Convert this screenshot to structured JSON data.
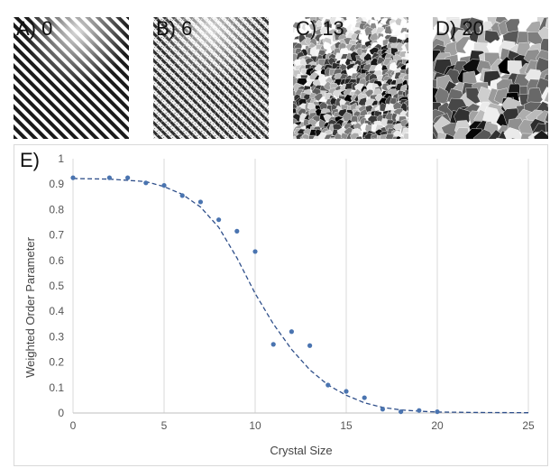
{
  "panels": [
    {
      "id": "a",
      "label": "A) 0"
    },
    {
      "id": "b",
      "label": "B) 6"
    },
    {
      "id": "c",
      "label": "C) 13"
    },
    {
      "id": "d",
      "label": "D) 20"
    }
  ],
  "chart_data": {
    "type": "scatter",
    "panel_label": "E)",
    "xlabel": "Crystal Size",
    "ylabel": "Weighted Order Parameter",
    "xlim": [
      0,
      25
    ],
    "ylim": [
      0,
      1
    ],
    "xticks": [
      0,
      5,
      10,
      15,
      20,
      25
    ],
    "yticks": [
      0,
      0.1,
      0.2,
      0.3,
      0.4,
      0.5,
      0.6,
      0.7,
      0.8,
      0.9,
      1
    ],
    "ytick_labels": [
      "0",
      "0.1",
      "0.2",
      "0.3",
      "0.4",
      "0.5",
      "0.6",
      "0.7",
      "0.8",
      "0.9",
      "1"
    ],
    "grid": "vertical",
    "series": [
      {
        "style": "markers",
        "color": "#4a74b0",
        "x": [
          0,
          2,
          3,
          4,
          5,
          6,
          7,
          8,
          9,
          10,
          11,
          12,
          13,
          14,
          15,
          16,
          17,
          18,
          19,
          20
        ],
        "y": [
          0.925,
          0.925,
          0.925,
          0.905,
          0.895,
          0.855,
          0.83,
          0.76,
          0.715,
          0.635,
          0.27,
          0.32,
          0.265,
          0.11,
          0.085,
          0.06,
          0.015,
          0.005,
          0.01,
          0.005
        ]
      },
      {
        "style": "dashed-fit",
        "color": "#2f4f8a",
        "x": [
          0,
          2,
          4,
          5,
          6,
          7,
          8,
          9,
          10,
          11,
          12,
          13,
          14,
          15,
          16,
          17,
          18,
          19,
          20,
          22,
          25
        ],
        "y": [
          0.922,
          0.92,
          0.91,
          0.89,
          0.86,
          0.81,
          0.73,
          0.61,
          0.47,
          0.35,
          0.25,
          0.17,
          0.11,
          0.07,
          0.04,
          0.022,
          0.012,
          0.007,
          0.004,
          0.002,
          0.001
        ]
      }
    ]
  }
}
